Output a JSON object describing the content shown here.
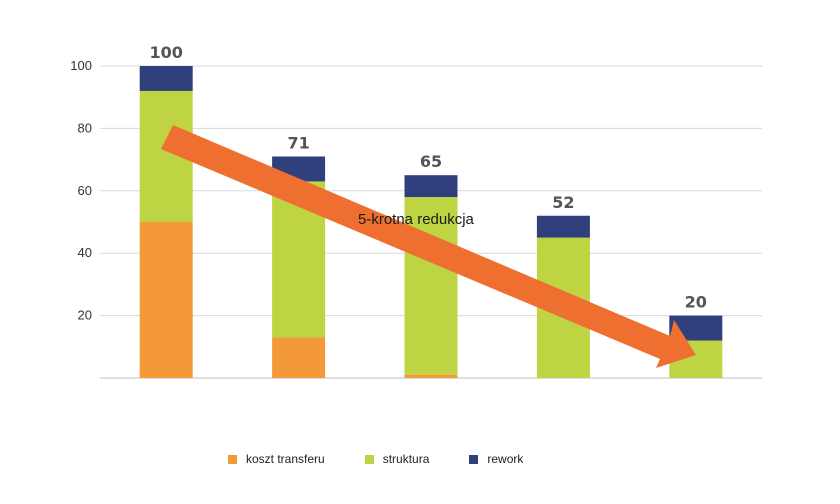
{
  "colors": {
    "koszt": "#f39939",
    "struktura": "#bfd443",
    "rework": "#2f407c",
    "arrow": "#ef6f31",
    "grid": "#d9d9d9"
  },
  "chart_data": {
    "type": "bar",
    "stacked": true,
    "categories": [
      "",
      "",
      "",
      "",
      ""
    ],
    "series": [
      {
        "name": "koszt transferu",
        "values": [
          50,
          13,
          1,
          0,
          0
        ]
      },
      {
        "name": "struktura",
        "values": [
          42,
          50,
          57,
          45,
          12
        ]
      },
      {
        "name": "rework",
        "values": [
          8,
          8,
          7,
          7,
          8
        ]
      }
    ],
    "totals": [
      "100",
      "71",
      "65",
      "52",
      "20"
    ],
    "yticks": [
      "20",
      "40",
      "60",
      "80",
      "100"
    ],
    "ylim": [
      0,
      100
    ],
    "grid": true,
    "legend": "bottom",
    "annotation": "5-krotna redukcja"
  }
}
